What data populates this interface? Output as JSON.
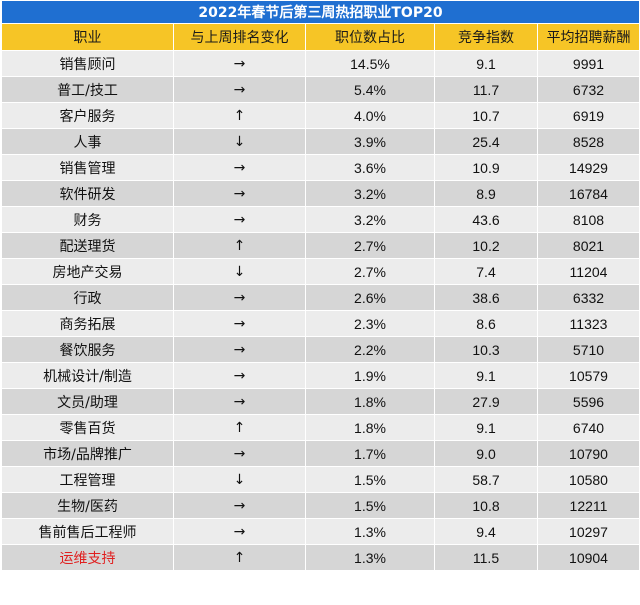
{
  "chart_data": {
    "type": "table",
    "title": "2022年春节后第三周热招职业TOP20",
    "columns": [
      "职业",
      "与上周排名变化",
      "职位数占比",
      "竞争指数",
      "平均招聘薪酬"
    ],
    "rows": [
      [
        "销售顾问",
        "→",
        "14.5%",
        "9.1",
        "9991"
      ],
      [
        "普工/技工",
        "→",
        "5.4%",
        "11.7",
        "6732"
      ],
      [
        "客户服务",
        "↑",
        "4.0%",
        "10.7",
        "6919"
      ],
      [
        "人事",
        "↓",
        "3.9%",
        "25.4",
        "8528"
      ],
      [
        "销售管理",
        "→",
        "3.6%",
        "10.9",
        "14929"
      ],
      [
        "软件研发",
        "→",
        "3.2%",
        "8.9",
        "16784"
      ],
      [
        "财务",
        "→",
        "3.2%",
        "43.6",
        "8108"
      ],
      [
        "配送理货",
        "↑",
        "2.7%",
        "10.2",
        "8021"
      ],
      [
        "房地产交易",
        "↓",
        "2.7%",
        "7.4",
        "11204"
      ],
      [
        "行政",
        "→",
        "2.6%",
        "38.6",
        "6332"
      ],
      [
        "商务拓展",
        "→",
        "2.3%",
        "8.6",
        "11323"
      ],
      [
        "餐饮服务",
        "→",
        "2.2%",
        "10.3",
        "5710"
      ],
      [
        "机械设计/制造",
        "→",
        "1.9%",
        "9.1",
        "10579"
      ],
      [
        "文员/助理",
        "→",
        "1.8%",
        "27.9",
        "5596"
      ],
      [
        "零售百货",
        "↑",
        "1.8%",
        "9.1",
        "6740"
      ],
      [
        "市场/品牌推广",
        "→",
        "1.7%",
        "9.0",
        "10790"
      ],
      [
        "工程管理",
        "↓",
        "1.5%",
        "58.7",
        "10580"
      ],
      [
        "生物/医药",
        "→",
        "1.5%",
        "10.8",
        "12211"
      ],
      [
        "售前售后工程师",
        "→",
        "1.3%",
        "9.4",
        "10297"
      ],
      [
        "运维支持",
        "↑",
        "1.3%",
        "11.5",
        "10904"
      ]
    ],
    "highlight_row": 19,
    "colors": {
      "title_bg": "#1f6fd1",
      "header_bg": "#f6c526",
      "row_light": "#ececec",
      "row_dark": "#d6d6d6",
      "highlight_text": "#e02020"
    }
  }
}
